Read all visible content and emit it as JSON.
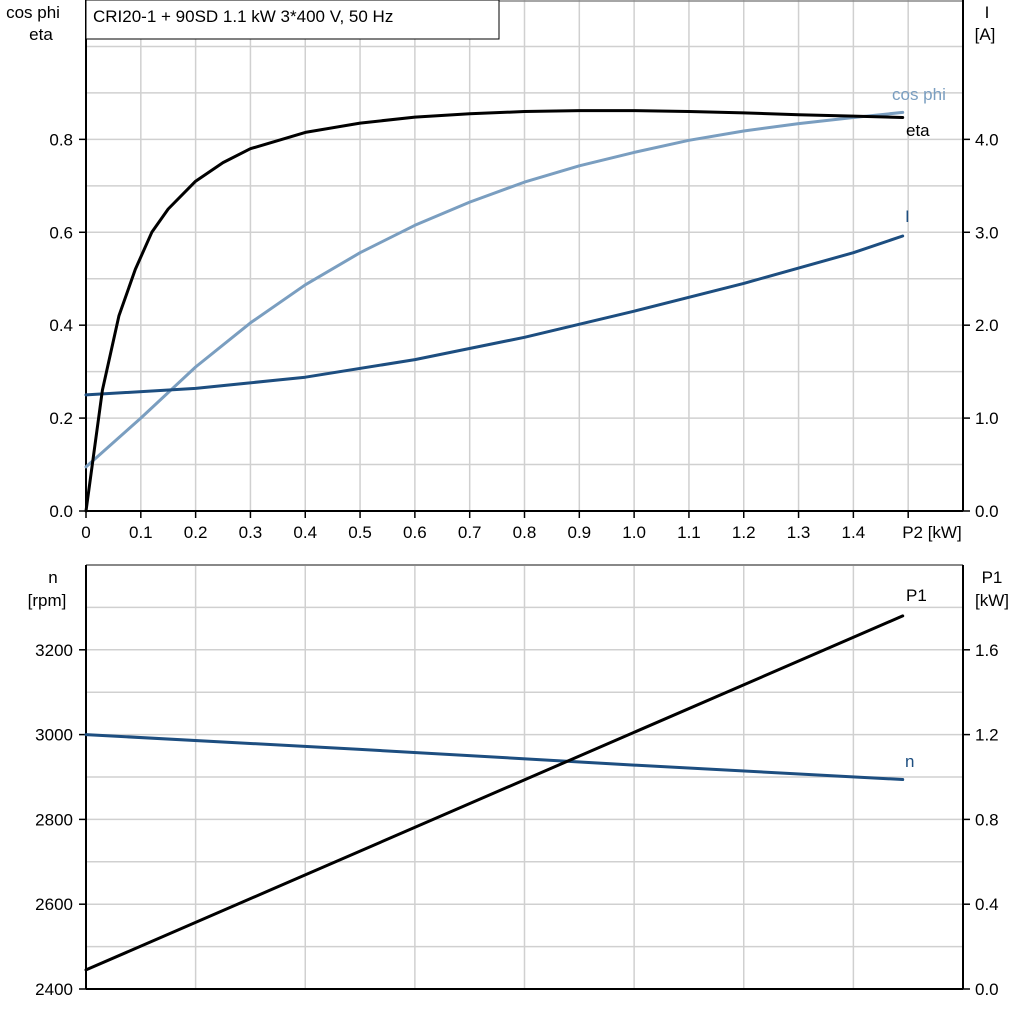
{
  "title": "CRI20-1 + 90SD   1.1 kW   3*400 V, 50 Hz",
  "colors": {
    "eta": "#000000",
    "cosphi": "#7a9ec0",
    "I": "#1d4e80",
    "n": "#1d4e80",
    "P1": "#000000",
    "grid": "#d0d0d0"
  },
  "chart_data": [
    {
      "type": "line",
      "title": "CRI20-1 + 90SD   1.1 kW   3*400 V, 50 Hz",
      "xlabel": "P2 [kW]",
      "ylabel_left": [
        "cos phi",
        "eta"
      ],
      "ylabel_right": [
        "I",
        "[A]"
      ],
      "xlim": [
        0,
        1.6
      ],
      "ylim_left": [
        0,
        1.1
      ],
      "ylim_right": [
        0,
        5.5
      ],
      "x_ticks": [
        "0",
        "0.1",
        "0.2",
        "0.3",
        "0.4",
        "0.5",
        "0.6",
        "0.7",
        "0.8",
        "0.9",
        "1.0",
        "1.1",
        "1.2",
        "1.3",
        "1.4"
      ],
      "y_ticks_left": [
        "0.0",
        "0.2",
        "0.4",
        "0.6",
        "0.8"
      ],
      "y_ticks_right": [
        "0.0",
        "1.0",
        "2.0",
        "3.0",
        "4.0"
      ],
      "grid": true,
      "series": [
        {
          "name": "eta",
          "axis": "left",
          "x": [
            0,
            0.03,
            0.06,
            0.09,
            0.12,
            0.15,
            0.2,
            0.25,
            0.3,
            0.4,
            0.5,
            0.6,
            0.7,
            0.8,
            0.9,
            1.0,
            1.1,
            1.2,
            1.3,
            1.4,
            1.49
          ],
          "y": [
            0,
            0.26,
            0.42,
            0.52,
            0.6,
            0.65,
            0.71,
            0.75,
            0.78,
            0.815,
            0.835,
            0.848,
            0.855,
            0.86,
            0.862,
            0.862,
            0.86,
            0.857,
            0.853,
            0.85,
            0.847
          ]
        },
        {
          "name": "cos phi",
          "axis": "left",
          "x": [
            0,
            0.1,
            0.2,
            0.3,
            0.4,
            0.5,
            0.6,
            0.7,
            0.8,
            0.9,
            1.0,
            1.1,
            1.2,
            1.3,
            1.4,
            1.49
          ],
          "y": [
            0.095,
            0.2,
            0.31,
            0.405,
            0.487,
            0.556,
            0.615,
            0.665,
            0.708,
            0.743,
            0.772,
            0.798,
            0.818,
            0.834,
            0.847,
            0.858
          ]
        },
        {
          "name": "I",
          "axis": "right",
          "x": [
            0,
            0.2,
            0.4,
            0.6,
            0.8,
            1.0,
            1.2,
            1.4,
            1.49
          ],
          "y": [
            1.25,
            1.32,
            1.44,
            1.63,
            1.87,
            2.15,
            2.45,
            2.78,
            2.96
          ]
        }
      ]
    },
    {
      "type": "line",
      "ylabel_left": [
        "n",
        "[rpm]"
      ],
      "ylabel_right": [
        "P1",
        "[kW]"
      ],
      "xlim": [
        0,
        1.6
      ],
      "ylim_left": [
        2400,
        3400
      ],
      "ylim_right": [
        0,
        2.0
      ],
      "y_ticks_left": [
        "2400",
        "2600",
        "2800",
        "3000",
        "3200"
      ],
      "y_ticks_right": [
        "0.0",
        "0.4",
        "0.8",
        "1.2",
        "1.6"
      ],
      "grid": true,
      "series": [
        {
          "name": "n",
          "axis": "left",
          "x": [
            0,
            0.5,
            1.0,
            1.49
          ],
          "y": [
            3000,
            2965,
            2928,
            2894
          ]
        },
        {
          "name": "P1",
          "axis": "right",
          "x": [
            0,
            1.49
          ],
          "y": [
            0.09,
            1.76
          ]
        }
      ]
    }
  ]
}
